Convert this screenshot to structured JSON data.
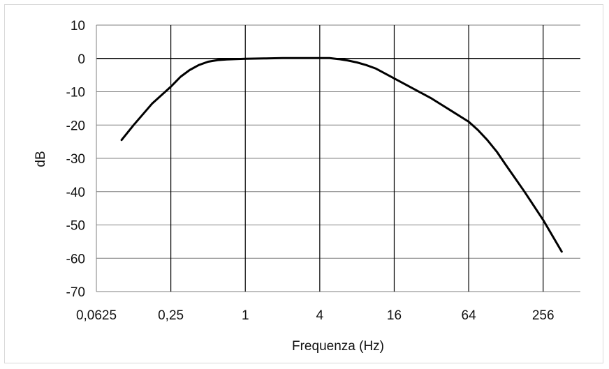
{
  "chart_data": {
    "type": "line",
    "xlabel": "Frequenza (Hz)",
    "ylabel": "dB",
    "x_scale": "log2",
    "xlim": [
      0.0625,
      512
    ],
    "ylim": [
      -70,
      10
    ],
    "grid": true,
    "x_ticks": [
      {
        "value": 0.0625,
        "label": "0,0625"
      },
      {
        "value": 0.25,
        "label": "0,25"
      },
      {
        "value": 1,
        "label": "1"
      },
      {
        "value": 4,
        "label": "4"
      },
      {
        "value": 16,
        "label": "16"
      },
      {
        "value": 64,
        "label": "64"
      },
      {
        "value": 256,
        "label": "256"
      }
    ],
    "y_ticks": [
      {
        "value": 10,
        "label": "10"
      },
      {
        "value": 0,
        "label": "0"
      },
      {
        "value": -10,
        "label": "-10"
      },
      {
        "value": -20,
        "label": "-20"
      },
      {
        "value": -30,
        "label": "-30"
      },
      {
        "value": -40,
        "label": "-40"
      },
      {
        "value": -50,
        "label": "-50"
      },
      {
        "value": -60,
        "label": "-60"
      },
      {
        "value": -70,
        "label": "-70"
      }
    ],
    "series": [
      {
        "color": "#000000",
        "x": [
          0.1,
          0.125,
          0.177,
          0.25,
          0.3,
          0.354,
          0.42,
          0.5,
          0.6,
          0.707,
          1,
          1.414,
          2,
          2.83,
          4,
          4.8,
          5.66,
          6.7,
          8,
          9.5,
          11.3,
          16,
          22.6,
          32,
          45.3,
          64,
          76,
          90.5,
          108,
          128,
          181,
          256,
          362
        ],
        "y": [
          -24.5,
          -20,
          -13.5,
          -8.5,
          -5.5,
          -3.5,
          -2,
          -1,
          -0.5,
          -0.3,
          -0.1,
          0,
          0.1,
          0.1,
          0.1,
          0.1,
          -0.2,
          -0.6,
          -1.2,
          -2,
          -3,
          -6,
          -9,
          -12,
          -15.5,
          -19,
          -21.5,
          -24.5,
          -28,
          -32,
          -40,
          -48.5,
          -58
        ]
      }
    ],
    "colors": {
      "line": "#000000",
      "grid": "#7f7f7f",
      "zero_line": "#000000",
      "frame": "#d9d9d9"
    }
  }
}
